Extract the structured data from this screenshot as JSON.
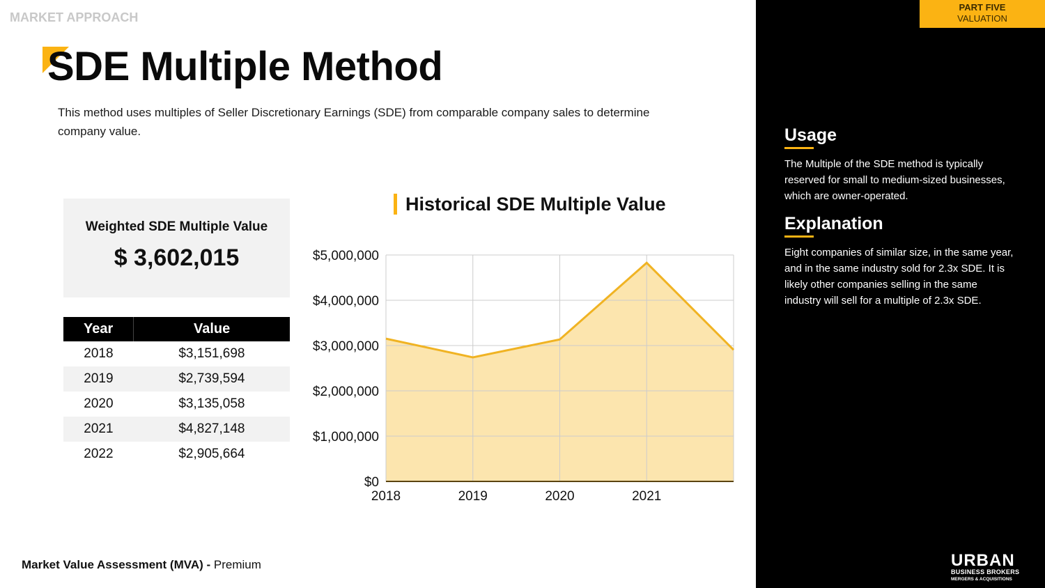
{
  "header": {
    "section": "MARKET APPROACH",
    "title": "SDE Multiple Method",
    "description": "This method uses multiples of Seller Discretionary Earnings (SDE) from comparable company sales to determine company value."
  },
  "tab": {
    "line1": "PART FIVE",
    "line2": "VALUATION"
  },
  "weighted": {
    "label": "Weighted SDE Multiple Value",
    "value": "$ 3,602,015"
  },
  "table": {
    "headers": [
      "Year",
      "Value"
    ],
    "rows": [
      [
        "2018",
        "$3,151,698"
      ],
      [
        "2019",
        "$2,739,594"
      ],
      [
        "2020",
        "$3,135,058"
      ],
      [
        "2021",
        "$4,827,148"
      ],
      [
        "2022",
        "$2,905,664"
      ]
    ]
  },
  "chart_data": {
    "type": "area",
    "title": "Historical SDE Multiple Value",
    "x": [
      2018,
      2019,
      2020,
      2021,
      2022
    ],
    "x_tick_labels": [
      "2018",
      "2019",
      "2020",
      "2021"
    ],
    "values": [
      3151698,
      2739594,
      3135058,
      4827148,
      2905664
    ],
    "y_tick_labels": [
      "$0",
      "$1,000,000",
      "$2,000,000",
      "$3,000,000",
      "$4,000,000",
      "$5,000,000"
    ],
    "ylim": [
      0,
      5000000
    ],
    "grid": true,
    "line_color": "#f0b323",
    "fill_color": "#fce5ae"
  },
  "sidebar": {
    "usage_title": "Usage",
    "usage_text": "The Multiple of the SDE method is typically reserved for small to medium-sized businesses, which are owner-operated.",
    "explanation_title": "Explanation",
    "explanation_text": "Eight companies of similar size, in the same year, and in the same industry sold for 2.3x SDE. It is likely other companies selling in the same industry will sell for a multiple of 2.3x SDE."
  },
  "footer": {
    "bold": "Market Value Assessment (MVA) -",
    "normal": "Premium"
  },
  "logo": {
    "line1": "URBAN",
    "line2": "BUSINESS BROKERS",
    "line3": "MERGERS & ACQUISITIONS"
  }
}
